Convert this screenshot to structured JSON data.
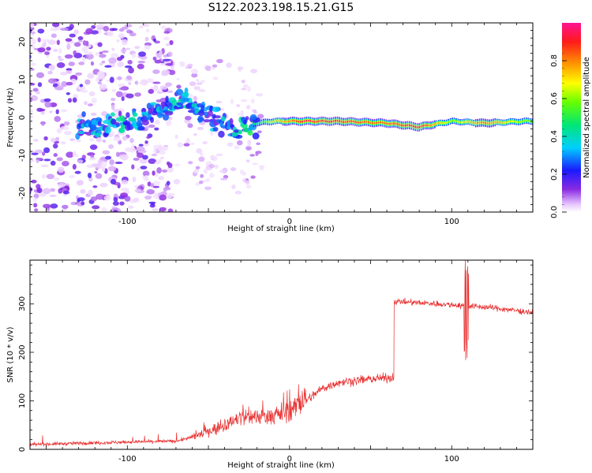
{
  "title": "S122.2023.198.15.21.G15",
  "chart_data": [
    {
      "type": "heatmap",
      "xlabel": "Height of straight line (km)",
      "ylabel": "Frequency (Hz)",
      "xlim": [
        -160,
        150
      ],
      "ylim": [
        -25,
        25
      ],
      "xticks": [
        -100,
        0,
        100
      ],
      "yticks": [
        -20,
        -10,
        0,
        10,
        20
      ],
      "colorbar": {
        "label": "Normalized spectral amplitude",
        "range": [
          0,
          1
        ],
        "ticks": [
          0.0,
          0.2,
          0.4,
          0.6,
          0.8
        ]
      },
      "ridge": [
        {
          "x": -120,
          "f": -2.5,
          "amp": 0.3
        },
        {
          "x": -100,
          "f": -1.5,
          "amp": 0.35
        },
        {
          "x": -85,
          "f": 1.0,
          "amp": 0.3
        },
        {
          "x": -65,
          "f": 5.0,
          "amp": 0.35
        },
        {
          "x": -50,
          "f": 0.0,
          "amp": 0.3
        },
        {
          "x": -35,
          "f": -3.0,
          "amp": 0.3
        },
        {
          "x": -20,
          "f": -1.5,
          "amp": 0.45
        },
        {
          "x": -10,
          "f": -1.0,
          "amp": 0.7
        },
        {
          "x": 10,
          "f": -1.0,
          "amp": 0.95
        },
        {
          "x": 30,
          "f": -1.0,
          "amp": 0.9
        },
        {
          "x": 60,
          "f": -1.5,
          "amp": 0.85
        },
        {
          "x": 80,
          "f": -2.5,
          "amp": 0.95
        },
        {
          "x": 100,
          "f": -1.0,
          "amp": 0.6
        },
        {
          "x": 120,
          "f": -1.5,
          "amp": 0.85
        },
        {
          "x": 145,
          "f": -1.0,
          "amp": 0.6
        }
      ]
    },
    {
      "type": "line",
      "xlabel": "Height of straight line (km)",
      "ylabel": "SNR (10 * v/v)",
      "xlim": [
        -160,
        150
      ],
      "ylim": [
        0,
        390
      ],
      "xticks": [
        -100,
        0,
        100
      ],
      "yticks": [
        0,
        100,
        200,
        300
      ],
      "color": "#e83030",
      "trend": [
        {
          "x": -160,
          "y": 10
        },
        {
          "x": -100,
          "y": 15
        },
        {
          "x": -70,
          "y": 17
        },
        {
          "x": -60,
          "y": 25
        },
        {
          "x": -40,
          "y": 50
        },
        {
          "x": -30,
          "y": 65
        },
        {
          "x": -10,
          "y": 70
        },
        {
          "x": 0,
          "y": 80
        },
        {
          "x": 10,
          "y": 100
        },
        {
          "x": 20,
          "y": 125
        },
        {
          "x": 30,
          "y": 138
        },
        {
          "x": 50,
          "y": 145
        },
        {
          "x": 64,
          "y": 148
        },
        {
          "x": 65,
          "y": 305
        },
        {
          "x": 80,
          "y": 302
        },
        {
          "x": 100,
          "y": 298
        },
        {
          "x": 125,
          "y": 292
        },
        {
          "x": 150,
          "y": 282
        }
      ],
      "spike": {
        "x": 109,
        "max": 390,
        "min": 180
      }
    }
  ]
}
